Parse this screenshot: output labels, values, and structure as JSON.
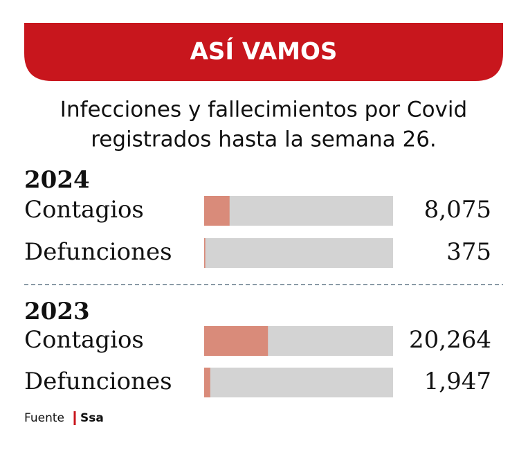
{
  "chart_data": {
    "type": "bar",
    "title": "ASÍ VAMOS",
    "subtitle": [
      "Infecciones y fallecimientos por Covid",
      "registrados hasta la semana 26."
    ],
    "groups": [
      {
        "label": "2024",
        "categories": [
          "Contagios",
          "Defunciones"
        ],
        "values": [
          8075,
          375
        ],
        "value_labels": [
          "8,075",
          "375"
        ]
      },
      {
        "label": "2023",
        "categories": [
          "Contagios",
          "Defunciones"
        ],
        "values": [
          20264,
          1947
        ],
        "value_labels": [
          "20,264",
          "1,947"
        ]
      }
    ],
    "xlim": [
      0,
      60000
    ],
    "color": "#d98b7a",
    "track_color": "#d3d3d3",
    "banner_color": "#c8161d",
    "source_label": "Fuente",
    "source": "Ssa"
  }
}
